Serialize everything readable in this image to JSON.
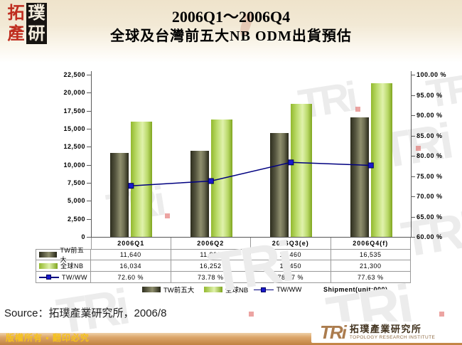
{
  "header": {
    "logo_chars": [
      "拓",
      "璞",
      "產",
      "研"
    ],
    "title_line1": "2006Q1～2006Q4",
    "title_line2": "全球及台灣前五大NB ODM出貨預估"
  },
  "chart_data": {
    "type": "bar",
    "subtype": "combo-bar-line-dual-axis",
    "categories": [
      "2006Q1",
      "2006Q2",
      "2006Q3(e)",
      "2006Q4(f)"
    ],
    "series": [
      {
        "name": "TW前五大",
        "type": "bar",
        "axis": "left",
        "color": "#55543a",
        "values": [
          11640,
          11990,
          14460,
          16535
        ]
      },
      {
        "name": "全球NB",
        "type": "bar",
        "axis": "left",
        "color": "#a9cf44",
        "values": [
          16034,
          16252,
          18450,
          21300
        ]
      },
      {
        "name": "TW/WW",
        "type": "line",
        "axis": "right",
        "color": "#000080",
        "values_percent": [
          72.6,
          73.78,
          78.37,
          77.63
        ]
      }
    ],
    "left_axis": {
      "min": 0,
      "max": 22500,
      "step": 2500,
      "tick_labels": [
        "0",
        "2,500",
        "5,000",
        "7,500",
        "10,000",
        "12,500",
        "15,000",
        "17,500",
        "20,000",
        "22,500"
      ]
    },
    "right_axis": {
      "min": 60,
      "max": 100,
      "step": 5,
      "tick_labels": [
        "60.00 %",
        "65.00 %",
        "70.00 %",
        "75.00 %",
        "80.00 %",
        "85.00 %",
        "90.00 %",
        "95.00 %",
        "100.00 %"
      ]
    },
    "unit_note": "Shipment(unit:000)",
    "grid": "off",
    "legend_position": "bottom"
  },
  "table": {
    "header_cells": [
      "2006Q1",
      "2006Q2",
      "2006Q3(e)",
      "2006Q4(f)"
    ],
    "rows": [
      {
        "label": "TW前五大",
        "cells": [
          "11,640",
          "11,990",
          "14,460",
          "16,535"
        ]
      },
      {
        "label": "全球NB",
        "cells": [
          "16,034",
          "16,252",
          "18,450",
          "21,300"
        ]
      },
      {
        "label": "TW/WW",
        "cells": [
          "72.60 %",
          "73.78 %",
          "78.37 %",
          "77.63 %"
        ]
      }
    ]
  },
  "colors": {
    "bar_dark": "#55543a",
    "bar_green": "#a9cf44",
    "line_blue": "#000080",
    "marker_blue": "#1a1acc",
    "footer_tan": "#cd9254",
    "copyright_yellow": "#f6c31c",
    "logo_brown": "#ab7c4e"
  },
  "watermark_glyph": "TRi",
  "source_text": "Source：拓璞產業研究所，2006/8",
  "footer": {
    "copyright": "版權所有 ▪ 翻印必究",
    "logo_abbr": "TRi",
    "logo_cn": "拓璞產業研究所",
    "logo_en": "TOPOLOGY RESEARCH INSTITUTE"
  }
}
